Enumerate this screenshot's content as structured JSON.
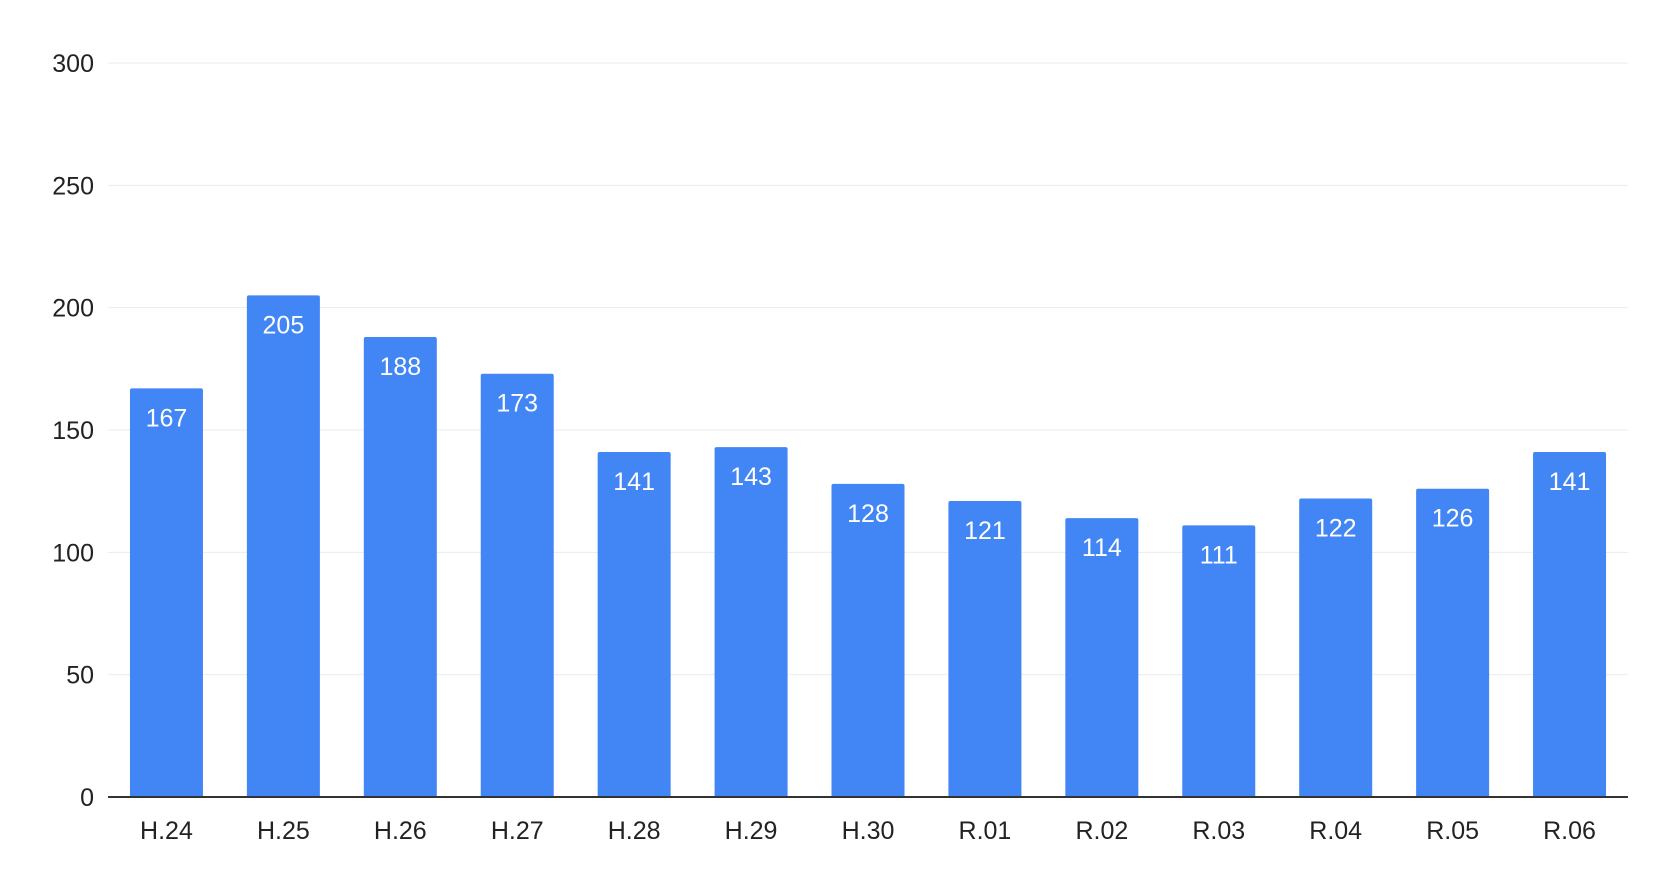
{
  "chart_data": {
    "type": "bar",
    "title": "",
    "xlabel": "",
    "ylabel": "",
    "categories": [
      "H.24",
      "H.25",
      "H.26",
      "H.27",
      "H.28",
      "H.29",
      "H.30",
      "R.01",
      "R.02",
      "R.03",
      "R.04",
      "R.05",
      "R.06"
    ],
    "values": [
      167,
      205,
      188,
      173,
      141,
      143,
      128,
      121,
      114,
      111,
      122,
      126,
      141
    ],
    "data_labels": [
      "167",
      "205",
      "188",
      "173",
      "141",
      "143",
      "128",
      "121",
      "114",
      "111",
      "122",
      "126",
      "141"
    ],
    "ylim": [
      0,
      300
    ],
    "y_ticks": [
      0,
      50,
      100,
      150,
      200,
      250,
      300
    ],
    "y_tick_labels": [
      "0",
      "50",
      "100",
      "150",
      "200",
      "250",
      "300"
    ],
    "grid": true,
    "legend": "none",
    "colors": {
      "bar": "#4285f4",
      "grid": "#ebebeb",
      "axis": "#333333",
      "text": "#222222",
      "label": "#ffffff"
    }
  }
}
